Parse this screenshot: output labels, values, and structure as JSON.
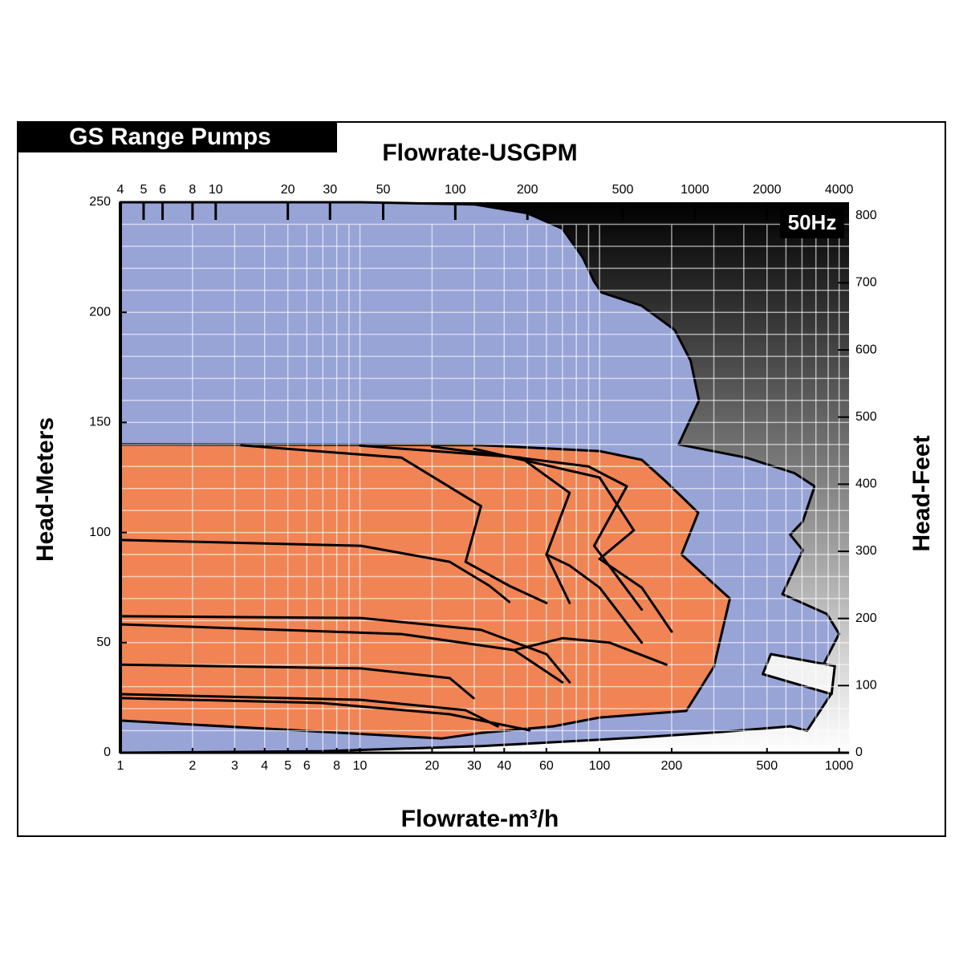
{
  "chart_data": {
    "type": "area",
    "title": "GS Range Pumps",
    "badge": "50Hz",
    "xlabel": "Flowrate-m³/h",
    "x2label": "Flowrate-USGPM",
    "ylabel": "Head-Meters",
    "y2label": "Head-Feet",
    "xscale": "log",
    "xlim": [
      1,
      1100
    ],
    "xticks": [
      1,
      2,
      3,
      4,
      5,
      6,
      8,
      10,
      20,
      30,
      40,
      60,
      100,
      200,
      500,
      1000
    ],
    "xgrid": [
      1,
      2,
      3,
      4,
      5,
      6,
      7,
      8,
      9,
      10,
      20,
      30,
      40,
      50,
      60,
      70,
      80,
      90,
      100,
      200,
      300,
      400,
      500,
      600,
      700,
      800,
      900,
      1000
    ],
    "x2lim": [
      4,
      4400
    ],
    "x2ticks": [
      4,
      5,
      6,
      8,
      10,
      20,
      30,
      50,
      100,
      200,
      500,
      1000,
      2000,
      4000
    ],
    "ylim": [
      0,
      250
    ],
    "yticks": [
      0,
      50,
      100,
      150,
      200,
      250
    ],
    "ygrid": [
      10,
      20,
      30,
      40,
      50,
      60,
      70,
      80,
      90,
      100,
      110,
      120,
      130,
      140,
      150,
      160,
      170,
      180,
      190,
      200,
      210,
      220,
      230,
      240
    ],
    "y2lim": [
      0,
      820
    ],
    "y2ticks": [
      0,
      100,
      200,
      300,
      400,
      500,
      600,
      700,
      800
    ],
    "envelope": {
      "color": "#98a3d6",
      "x": [
        1,
        1,
        10,
        30,
        50,
        70,
        85,
        95,
        102,
        150,
        206,
        240,
        260,
        214,
        410,
        650,
        790,
        705,
        625,
        705,
        580,
        890,
        1000,
        850,
        930,
        735,
        625,
        330,
        150,
        32,
        6.9
      ],
      "y": [
        0,
        250,
        250,
        249,
        245,
        238,
        225,
        214,
        209,
        203,
        192,
        178,
        160,
        140,
        134,
        127,
        121,
        105,
        99,
        92,
        72,
        63,
        54,
        39,
        27,
        10,
        12,
        9.5,
        7,
        3,
        0.7
      ]
    },
    "island": {
      "color": "#f2f2f2",
      "x": [
        519,
        960,
        930,
        480
      ],
      "y": [
        44.8,
        39.4,
        26.6,
        35.7
      ]
    },
    "coverage": {
      "color": "#f08454",
      "x": [
        1,
        32,
        100,
        150,
        190,
        258,
        220,
        350,
        300,
        230,
        100,
        64,
        32,
        22,
        1
      ],
      "y": [
        140,
        139.7,
        137,
        133,
        123,
        109,
        90,
        70,
        39,
        19,
        16,
        12,
        9,
        6.5,
        14.6
      ]
    },
    "curves": [
      {
        "x": [
          1,
          10.1,
          23.7,
          34.7,
          42
        ],
        "y": [
          96.6,
          94,
          86.7,
          75.8,
          68.5
        ]
      },
      {
        "x": [
          1,
          10.1,
          32,
          60,
          75
        ],
        "y": [
          62,
          61.2,
          55.8,
          44.8,
          32
        ]
      },
      {
        "x": [
          1,
          14.9,
          44,
          70
        ],
        "y": [
          58.3,
          53.9,
          46.6,
          32
        ]
      },
      {
        "x": [
          1,
          10.1,
          23.7,
          29.8
        ],
        "y": [
          40,
          38.3,
          33.9,
          24.8
        ]
      },
      {
        "x": [
          1,
          10.1,
          27.6,
          37.6
        ],
        "y": [
          26.6,
          24,
          19.3,
          12
        ]
      },
      {
        "x": [
          1,
          6.9,
          23.7,
          51
        ],
        "y": [
          24.8,
          22.6,
          17.5,
          10.2
        ]
      },
      {
        "x": [
          3.2,
          14.9,
          32,
          27.6,
          42,
          60
        ],
        "y": [
          139.6,
          134,
          112,
          86.7,
          75.8,
          68
        ]
      },
      {
        "x": [
          10,
          47,
          75,
          60,
          75
        ],
        "y": [
          139.5,
          134,
          118,
          90,
          68
        ]
      },
      {
        "x": [
          20,
          90,
          130,
          95,
          150
        ],
        "y": [
          139,
          130,
          121,
          94,
          65
        ]
      },
      {
        "x": [
          30,
          100,
          139,
          100,
          150,
          200
        ],
        "y": [
          138,
          125,
          101,
          88,
          75,
          55
        ]
      },
      {
        "x": [
          60,
          75,
          100,
          150
        ],
        "y": [
          90,
          85,
          75,
          50
        ]
      },
      {
        "x": [
          44,
          70,
          110,
          190
        ],
        "y": [
          46.6,
          52,
          50,
          40
        ]
      }
    ]
  }
}
